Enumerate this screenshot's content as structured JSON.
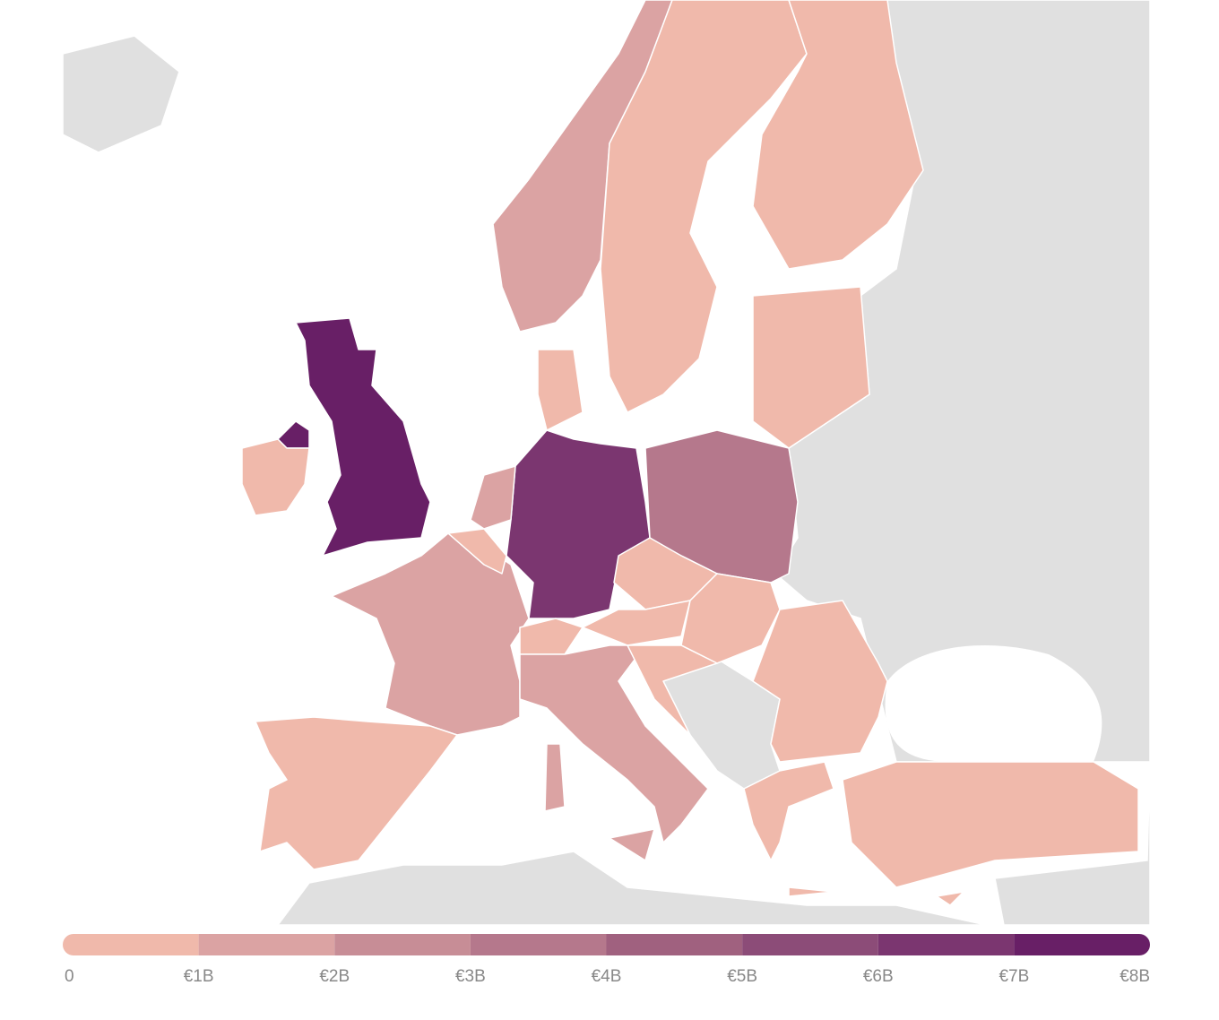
{
  "legend": {
    "ticks": [
      0,
      {
        "value": 1,
        "label": "€1B"
      },
      {
        "value": 2,
        "label": "€2B"
      },
      {
        "value": 3,
        "label": "€3B"
      },
      {
        "value": 4,
        "label": "€4B"
      },
      {
        "value": 5,
        "label": "€5B"
      },
      {
        "value": 6,
        "label": "€6B"
      },
      {
        "value": 7,
        "label": "€7B"
      },
      {
        "value": 8,
        "label": "€8B"
      }
    ],
    "range": [
      0,
      8
    ],
    "colors": [
      "#f0b9ab",
      "#dba3a3",
      "#c78d96",
      "#b5788c",
      "#a0617f",
      "#8c4c78",
      "#7b3670",
      "#681f66"
    ]
  }
}
